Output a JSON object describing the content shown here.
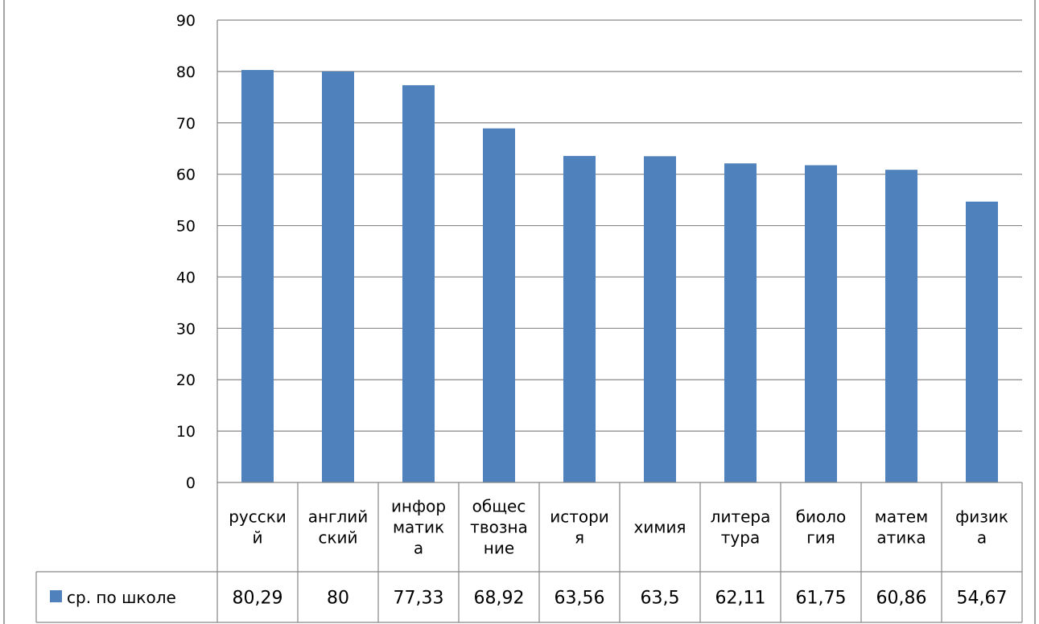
{
  "chart_data": {
    "type": "bar",
    "categories": [
      [
        "русски",
        "й"
      ],
      [
        "англий",
        "ский"
      ],
      [
        "инфор",
        "матик",
        "а"
      ],
      [
        "общес",
        "твозна",
        "ние"
      ],
      [
        "истори",
        "я"
      ],
      [
        "химия"
      ],
      [
        "литера",
        "тура"
      ],
      [
        "биоло",
        "гия"
      ],
      [
        "матем",
        "атика"
      ],
      [
        "физик",
        "а"
      ]
    ],
    "series": [
      {
        "name": "ср. по школе",
        "values": [
          80.29,
          80,
          77.33,
          68.92,
          63.56,
          63.5,
          62.11,
          61.75,
          60.86,
          54.67
        ],
        "value_labels": [
          "80,29",
          "80",
          "77,33",
          "68,92",
          "63,56",
          "63,5",
          "62,11",
          "61,75",
          "60,86",
          "54,67"
        ],
        "color": "#4F81BD"
      }
    ],
    "ylim": [
      0,
      90
    ],
    "yticks": [
      "0",
      "10",
      "20",
      "30",
      "40",
      "50",
      "60",
      "70",
      "80",
      "90"
    ],
    "grid": true,
    "legend": "data-table"
  }
}
